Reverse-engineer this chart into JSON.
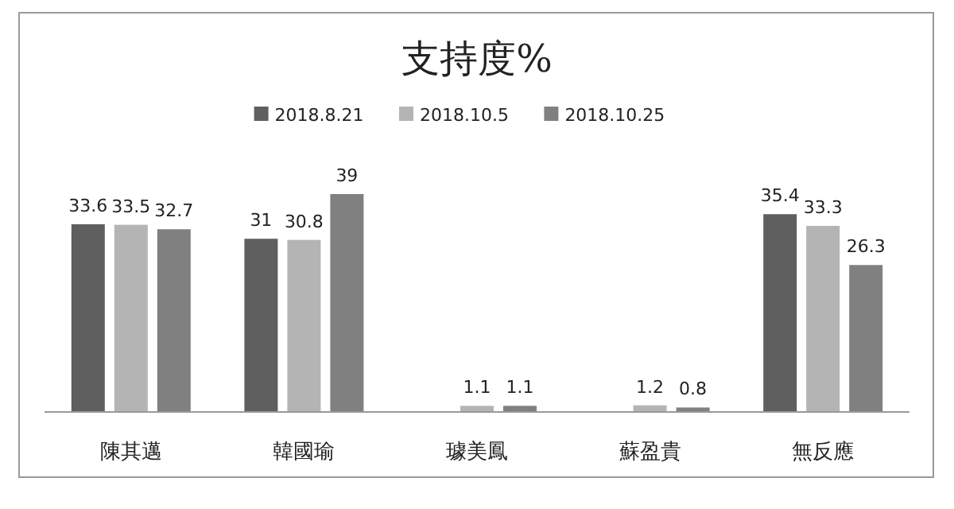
{
  "chart_data": {
    "type": "bar",
    "title": "支持度%",
    "categories": [
      "陳其邁",
      "韓國瑜",
      "璩美鳳",
      "蘇盈貴",
      "無反應"
    ],
    "series": [
      {
        "name": "2018.8.21",
        "color": "#5f5f5f",
        "values": [
          33.6,
          31,
          null,
          null,
          35.4
        ]
      },
      {
        "name": "2018.10.5",
        "color": "#b4b4b4",
        "values": [
          33.5,
          30.8,
          1.1,
          1.2,
          33.3
        ]
      },
      {
        "name": "2018.10.25",
        "color": "#808080",
        "values": [
          32.7,
          39,
          1.1,
          0.8,
          26.3
        ]
      }
    ],
    "data_labels": true,
    "legend": "top",
    "grid": false
  }
}
